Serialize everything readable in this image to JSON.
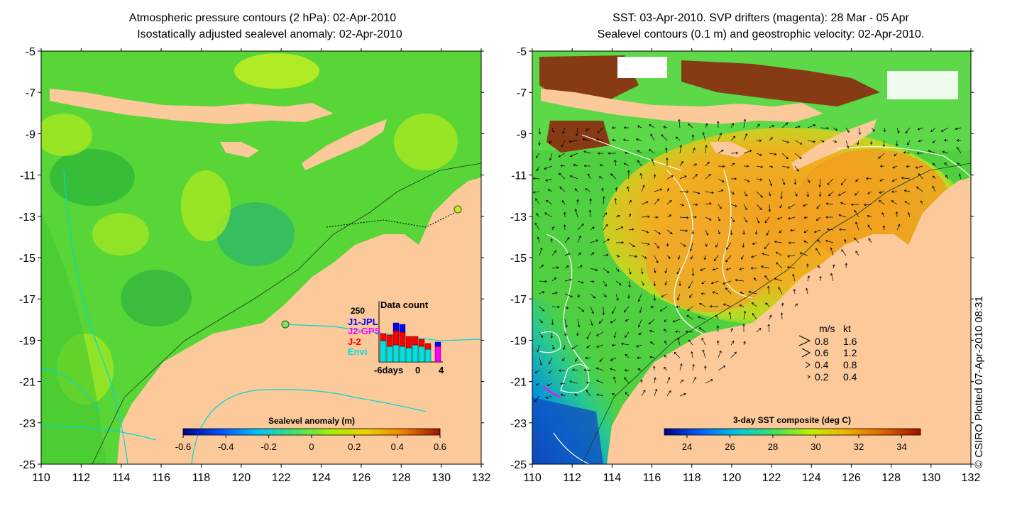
{
  "left_panel": {
    "title_line1": "Atmospheric pressure contours (2 hPa): 02-Apr-2010",
    "title_line2": "Isostatically adjusted sealevel anomaly: 02-Apr-2010",
    "colorbar_label": "Sealevel anomaly (m)",
    "colorbar_ticks": [
      "-0.6",
      "-0.4",
      "-0.2",
      "0",
      "0.2",
      "0.4",
      "0.6"
    ],
    "colorbar_stops": [
      "#00008b",
      "#0050ff",
      "#00c0ff",
      "#40e070",
      "#a0f000",
      "#f0d000",
      "#f08000",
      "#a01000"
    ],
    "data_count": {
      "title": "Data count",
      "ymax_label": "250",
      "legend": [
        {
          "name": "J1-JPL",
          "color": "#0000ff"
        },
        {
          "name": "J2-GPS",
          "color": "#ff00ff"
        },
        {
          "name": "J-2",
          "color": "#ff0000"
        },
        {
          "name": "Envi",
          "color": "#00e0e0"
        }
      ],
      "xticks": [
        "-6days",
        "0",
        "4"
      ]
    }
  },
  "right_panel": {
    "title_line1": "SST: 03-Apr-2010. SVP drifters (magenta): 28 Mar - 05 Apr",
    "title_line2": "Sealevel contours (0.1 m) and geostrophic velocity: 02-Apr-2010.",
    "colorbar_label": "3-day SST composite (deg C)",
    "colorbar_ticks": [
      "24",
      "26",
      "28",
      "30",
      "32",
      "34"
    ],
    "colorbar_stops": [
      "#00008b",
      "#0060ff",
      "#00c8e0",
      "#40e060",
      "#c0f000",
      "#f0b000",
      "#e06000",
      "#a01000"
    ],
    "velocity_key": {
      "header_ms": "m/s",
      "header_kt": "kt",
      "rows": [
        {
          "ms": "0.8",
          "kt": "1.6"
        },
        {
          "ms": "0.6",
          "kt": "1.2"
        },
        {
          "ms": "0.4",
          "kt": "0.8"
        },
        {
          "ms": "0.2",
          "kt": "0.4"
        }
      ]
    }
  },
  "axes": {
    "lon_ticks": [
      "110",
      "112",
      "114",
      "116",
      "118",
      "120",
      "122",
      "124",
      "126",
      "128",
      "130",
      "132"
    ],
    "lat_ticks": [
      "-5",
      "-7",
      "-9",
      "-11",
      "-13",
      "-15",
      "-17",
      "-19",
      "-21",
      "-23",
      "-25"
    ]
  },
  "credit": "© CSIRO Plotted 07-Apr-2010 08:31",
  "colors": {
    "land": "#fbc99a",
    "ocean_green": "#48d048",
    "ocean_warm": "#f0a020",
    "no_data": "#8b2a10"
  }
}
